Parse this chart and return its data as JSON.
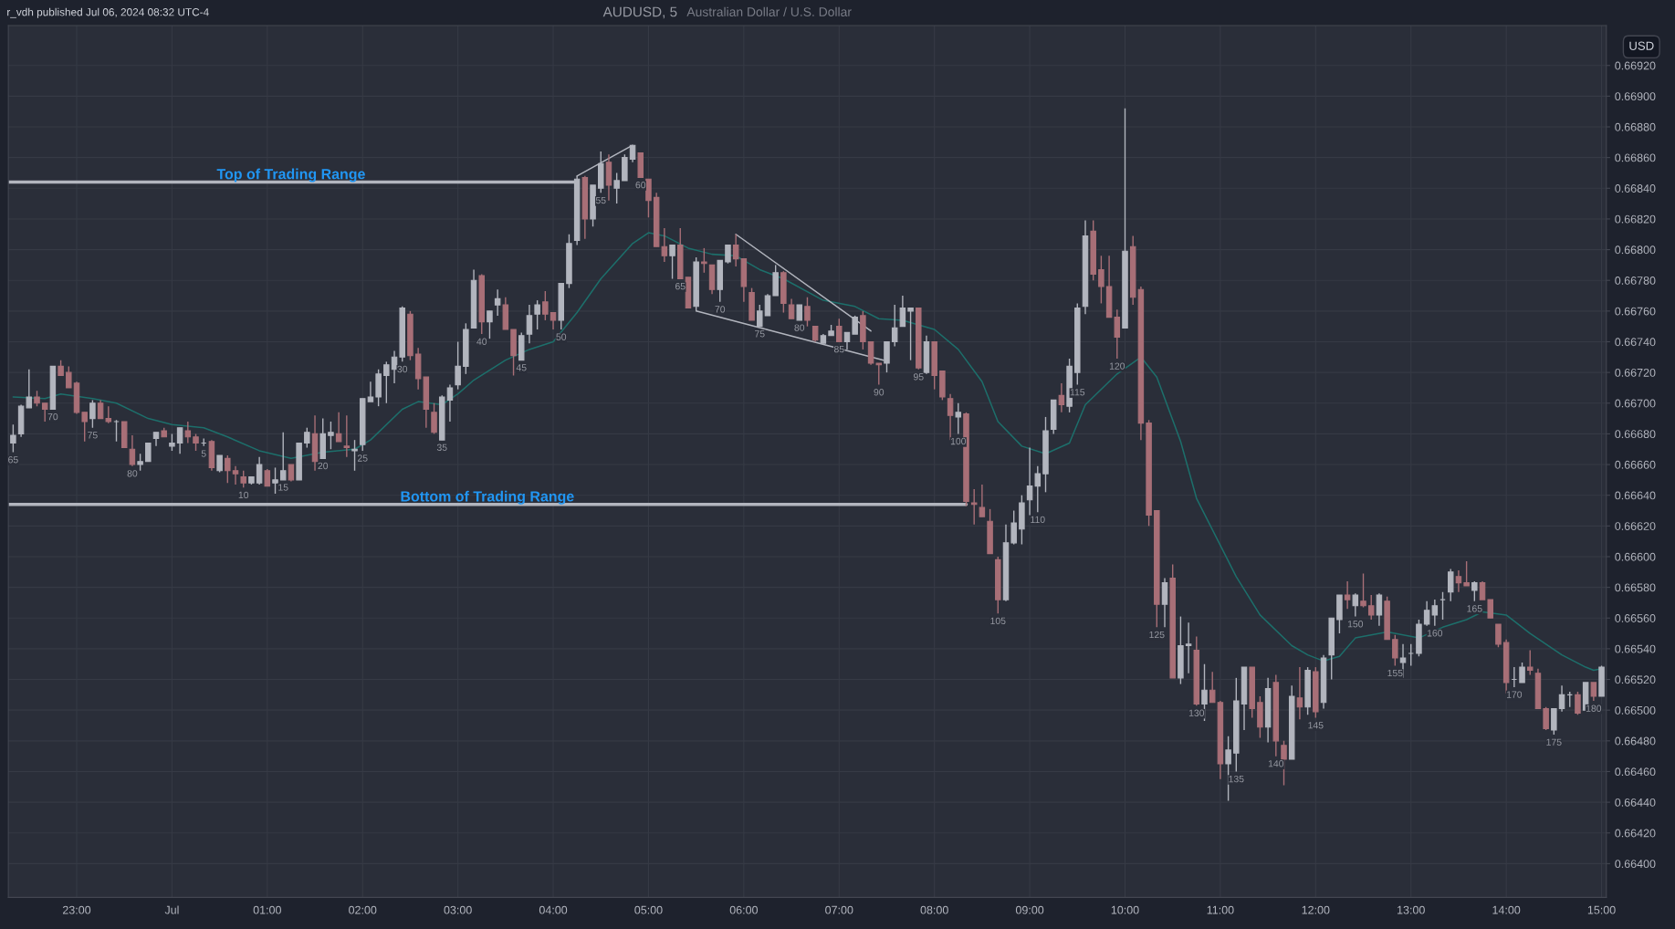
{
  "chart_data": {
    "type": "candlestick",
    "title": "AUDUSD, 5",
    "subtitle": "Australian Dollar / U.S. Dollar",
    "ylabel": "USD",
    "grid": true,
    "xlim": [
      "2024-06-30T22:17",
      "2024-07-01T15:03"
    ],
    "ylim": [
      0.66378,
      0.66946
    ],
    "xticks": [
      {
        "value": "2024-06-30T23:00",
        "label": "23:00"
      },
      {
        "value": "2024-07-01T00:00",
        "label": "Jul"
      },
      {
        "value": "2024-07-01T01:00",
        "label": "01:00"
      },
      {
        "value": "2024-07-01T02:00",
        "label": "02:00"
      },
      {
        "value": "2024-07-01T03:00",
        "label": "03:00"
      },
      {
        "value": "2024-07-01T04:00",
        "label": "04:00"
      },
      {
        "value": "2024-07-01T05:00",
        "label": "05:00"
      },
      {
        "value": "2024-07-01T06:00",
        "label": "06:00"
      },
      {
        "value": "2024-07-01T07:00",
        "label": "07:00"
      },
      {
        "value": "2024-07-01T08:00",
        "label": "08:00"
      },
      {
        "value": "2024-07-01T09:00",
        "label": "09:00"
      },
      {
        "value": "2024-07-01T10:00",
        "label": "10:00"
      },
      {
        "value": "2024-07-01T11:00",
        "label": "11:00"
      },
      {
        "value": "2024-07-01T12:00",
        "label": "12:00"
      },
      {
        "value": "2024-07-01T13:00",
        "label": "13:00"
      },
      {
        "value": "2024-07-01T14:00",
        "label": "14:00"
      },
      {
        "value": "2024-07-01T15:00",
        "label": "15:00"
      }
    ],
    "yticks": [
      {
        "value": 0.664,
        "label": "0.66400"
      },
      {
        "value": 0.6642,
        "label": "0.66420"
      },
      {
        "value": 0.6644,
        "label": "0.66440"
      },
      {
        "value": 0.6646,
        "label": "0.66460"
      },
      {
        "value": 0.6648,
        "label": "0.66480"
      },
      {
        "value": 0.665,
        "label": "0.66500"
      },
      {
        "value": 0.6652,
        "label": "0.66520"
      },
      {
        "value": 0.6654,
        "label": "0.66540"
      },
      {
        "value": 0.6656,
        "label": "0.66560"
      },
      {
        "value": 0.6658,
        "label": "0.66580"
      },
      {
        "value": 0.666,
        "label": "0.66600"
      },
      {
        "value": 0.6662,
        "label": "0.66620"
      },
      {
        "value": 0.6664,
        "label": "0.66640"
      },
      {
        "value": 0.6666,
        "label": "0.66660"
      },
      {
        "value": 0.6668,
        "label": "0.66680"
      },
      {
        "value": 0.667,
        "label": "0.66700"
      },
      {
        "value": 0.6672,
        "label": "0.66720"
      },
      {
        "value": 0.6674,
        "label": "0.66740"
      },
      {
        "value": 0.6676,
        "label": "0.66760"
      },
      {
        "value": 0.6678,
        "label": "0.66780"
      },
      {
        "value": 0.668,
        "label": "0.66800"
      },
      {
        "value": 0.6682,
        "label": "0.66820"
      },
      {
        "value": 0.6684,
        "label": "0.66840"
      },
      {
        "value": 0.6686,
        "label": "0.66860"
      },
      {
        "value": 0.6688,
        "label": "0.66880"
      },
      {
        "value": 0.669,
        "label": "0.66900"
      },
      {
        "value": 0.6692,
        "label": "0.66920"
      }
    ],
    "x": [
      "2024-06-30T22:20",
      "2024-06-30T22:25",
      "2024-06-30T22:30",
      "2024-06-30T22:35",
      "2024-06-30T22:40",
      "2024-06-30T22:45",
      "2024-06-30T22:50",
      "2024-06-30T22:55",
      "2024-06-30T23:00",
      "2024-06-30T23:05",
      "2024-06-30T23:10",
      "2024-06-30T23:15",
      "2024-06-30T23:20",
      "2024-06-30T23:25",
      "2024-06-30T23:30",
      "2024-06-30T23:35",
      "2024-06-30T23:40",
      "2024-06-30T23:45",
      "2024-06-30T23:50",
      "2024-06-30T23:55",
      "2024-07-01T00:00",
      "2024-07-01T00:05",
      "2024-07-01T00:10",
      "2024-07-01T00:15",
      "2024-07-01T00:20",
      "2024-07-01T00:25",
      "2024-07-01T00:30",
      "2024-07-01T00:35",
      "2024-07-01T00:40",
      "2024-07-01T00:45",
      "2024-07-01T00:50",
      "2024-07-01T00:55",
      "2024-07-01T01:00",
      "2024-07-01T01:05",
      "2024-07-01T01:10",
      "2024-07-01T01:15",
      "2024-07-01T01:20",
      "2024-07-01T01:25",
      "2024-07-01T01:30",
      "2024-07-01T01:35",
      "2024-07-01T01:40",
      "2024-07-01T01:45",
      "2024-07-01T01:50",
      "2024-07-01T01:55",
      "2024-07-01T02:00",
      "2024-07-01T02:05",
      "2024-07-01T02:10",
      "2024-07-01T02:15",
      "2024-07-01T02:20",
      "2024-07-01T02:25",
      "2024-07-01T02:30",
      "2024-07-01T02:35",
      "2024-07-01T02:40",
      "2024-07-01T02:45",
      "2024-07-01T02:50",
      "2024-07-01T02:55",
      "2024-07-01T03:00",
      "2024-07-01T03:05",
      "2024-07-01T03:10",
      "2024-07-01T03:15",
      "2024-07-01T03:20",
      "2024-07-01T03:25",
      "2024-07-01T03:30",
      "2024-07-01T03:35",
      "2024-07-01T03:40",
      "2024-07-01T03:45",
      "2024-07-01T03:50",
      "2024-07-01T03:55",
      "2024-07-01T04:00",
      "2024-07-01T04:05",
      "2024-07-01T04:10",
      "2024-07-01T04:15",
      "2024-07-01T04:20",
      "2024-07-01T04:25",
      "2024-07-01T04:30",
      "2024-07-01T04:35",
      "2024-07-01T04:40",
      "2024-07-01T04:45",
      "2024-07-01T04:50",
      "2024-07-01T04:55",
      "2024-07-01T05:00",
      "2024-07-01T05:05",
      "2024-07-01T05:10",
      "2024-07-01T05:15",
      "2024-07-01T05:20",
      "2024-07-01T05:25",
      "2024-07-01T05:30",
      "2024-07-01T05:35",
      "2024-07-01T05:40",
      "2024-07-01T05:45",
      "2024-07-01T05:50",
      "2024-07-01T05:55",
      "2024-07-01T06:00",
      "2024-07-01T06:05",
      "2024-07-01T06:10",
      "2024-07-01T06:15",
      "2024-07-01T06:20",
      "2024-07-01T06:25",
      "2024-07-01T06:30",
      "2024-07-01T06:35",
      "2024-07-01T06:40",
      "2024-07-01T06:45",
      "2024-07-01T06:50",
      "2024-07-01T06:55",
      "2024-07-01T07:00",
      "2024-07-01T07:05",
      "2024-07-01T07:10",
      "2024-07-01T07:15",
      "2024-07-01T07:20",
      "2024-07-01T07:25",
      "2024-07-01T07:30",
      "2024-07-01T07:35",
      "2024-07-01T07:40",
      "2024-07-01T07:45",
      "2024-07-01T07:50",
      "2024-07-01T07:55",
      "2024-07-01T08:00",
      "2024-07-01T08:05",
      "2024-07-01T08:10",
      "2024-07-01T08:15",
      "2024-07-01T08:20",
      "2024-07-01T08:25",
      "2024-07-01T08:30",
      "2024-07-01T08:35",
      "2024-07-01T08:40",
      "2024-07-01T08:45",
      "2024-07-01T08:50",
      "2024-07-01T08:55",
      "2024-07-01T09:00",
      "2024-07-01T09:05",
      "2024-07-01T09:10",
      "2024-07-01T09:15",
      "2024-07-01T09:20",
      "2024-07-01T09:25",
      "2024-07-01T09:30",
      "2024-07-01T09:35",
      "2024-07-01T09:40",
      "2024-07-01T09:45",
      "2024-07-01T09:50",
      "2024-07-01T09:55",
      "2024-07-01T10:00",
      "2024-07-01T10:05",
      "2024-07-01T10:10",
      "2024-07-01T10:15",
      "2024-07-01T10:20",
      "2024-07-01T10:25",
      "2024-07-01T10:30",
      "2024-07-01T10:35",
      "2024-07-01T10:40",
      "2024-07-01T10:45",
      "2024-07-01T10:50",
      "2024-07-01T10:55",
      "2024-07-01T11:00",
      "2024-07-01T11:05",
      "2024-07-01T11:10",
      "2024-07-01T11:15",
      "2024-07-01T11:20",
      "2024-07-01T11:25",
      "2024-07-01T11:30",
      "2024-07-01T11:35",
      "2024-07-01T11:40",
      "2024-07-01T11:45",
      "2024-07-01T11:50",
      "2024-07-01T11:55",
      "2024-07-01T12:00",
      "2024-07-01T12:05",
      "2024-07-01T12:10",
      "2024-07-01T12:15",
      "2024-07-01T12:20",
      "2024-07-01T12:25",
      "2024-07-01T12:30",
      "2024-07-01T12:35",
      "2024-07-01T12:40",
      "2024-07-01T12:45",
      "2024-07-01T12:50",
      "2024-07-01T12:55",
      "2024-07-01T13:00",
      "2024-07-01T13:05",
      "2024-07-01T13:10",
      "2024-07-01T13:15",
      "2024-07-01T13:20",
      "2024-07-01T13:25",
      "2024-07-01T13:30",
      "2024-07-01T13:35",
      "2024-07-01T13:40",
      "2024-07-01T13:45",
      "2024-07-01T13:50",
      "2024-07-01T13:55",
      "2024-07-01T14:00",
      "2024-07-01T14:05",
      "2024-07-01T14:10",
      "2024-07-01T14:15",
      "2024-07-01T14:20",
      "2024-07-01T14:25",
      "2024-07-01T14:30",
      "2024-07-01T14:35",
      "2024-07-01T14:40",
      "2024-07-01T14:45",
      "2024-07-01T14:50",
      "2024-07-01T14:55",
      "2024-07-01T15:00"
    ],
    "ohlc": [
      [
        0.66674,
        0.66686,
        0.66668,
        0.66679
      ],
      [
        0.6668,
        0.66699,
        0.66678,
        0.66698
      ],
      [
        0.66697,
        0.66722,
        0.66697,
        0.66704
      ],
      [
        0.66704,
        0.66708,
        0.66698,
        0.667
      ],
      [
        0.667,
        0.667,
        0.66688,
        0.66696
      ],
      [
        0.66696,
        0.66724,
        0.66696,
        0.66724
      ],
      [
        0.66724,
        0.66728,
        0.66718,
        0.66718
      ],
      [
        0.6672,
        0.66724,
        0.6671,
        0.6671
      ],
      [
        0.66713,
        0.66714,
        0.66693,
        0.66694
      ],
      [
        0.66694,
        0.66694,
        0.66675,
        0.66688
      ],
      [
        0.6669,
        0.66702,
        0.66684,
        0.667
      ],
      [
        0.667,
        0.66702,
        0.6669,
        0.6669
      ],
      [
        0.6669,
        0.66698,
        0.66687,
        0.66688
      ],
      [
        0.66688,
        0.66689,
        0.66675,
        0.66688
      ],
      [
        0.66688,
        0.66688,
        0.66671,
        0.66671
      ],
      [
        0.6667,
        0.66679,
        0.66659,
        0.6666
      ],
      [
        0.6666,
        0.66667,
        0.66656,
        0.66662
      ],
      [
        0.66662,
        0.66674,
        0.66662,
        0.66674
      ],
      [
        0.66677,
        0.66681,
        0.66672,
        0.66681
      ],
      [
        0.66682,
        0.66684,
        0.66678,
        0.66678
      ],
      [
        0.66672,
        0.6668,
        0.66669,
        0.66674
      ],
      [
        0.66674,
        0.66684,
        0.66667,
        0.66684
      ],
      [
        0.66682,
        0.66688,
        0.66674,
        0.66678
      ],
      [
        0.66678,
        0.6668,
        0.66669,
        0.66674
      ],
      [
        0.66674,
        0.66677,
        0.66672,
        0.66674
      ],
      [
        0.66675,
        0.66676,
        0.66656,
        0.66658
      ],
      [
        0.66656,
        0.66666,
        0.66655,
        0.66666
      ],
      [
        0.66664,
        0.66666,
        0.66648,
        0.66656
      ],
      [
        0.66656,
        0.66659,
        0.66647,
        0.66654
      ],
      [
        0.66652,
        0.66656,
        0.66645,
        0.66648
      ],
      [
        0.66648,
        0.66652,
        0.66647,
        0.66652
      ],
      [
        0.66648,
        0.66665,
        0.66647,
        0.6666
      ],
      [
        0.66656,
        0.66657,
        0.66646,
        0.66646
      ],
      [
        0.66648,
        0.66658,
        0.66641,
        0.6665
      ],
      [
        0.6665,
        0.66681,
        0.6665,
        0.66656
      ],
      [
        0.6666,
        0.6666,
        0.66649,
        0.6665
      ],
      [
        0.6665,
        0.66674,
        0.6665,
        0.66674
      ],
      [
        0.66674,
        0.66684,
        0.66671,
        0.66681
      ],
      [
        0.6668,
        0.66692,
        0.66656,
        0.66662
      ],
      [
        0.66664,
        0.6669,
        0.66664,
        0.6668
      ],
      [
        0.66679,
        0.66688,
        0.6667,
        0.66681
      ],
      [
        0.6668,
        0.66694,
        0.66675,
        0.66675
      ],
      [
        0.66672,
        0.66692,
        0.66665,
        0.66671
      ],
      [
        0.66669,
        0.66676,
        0.66656,
        0.6667
      ],
      [
        0.66673,
        0.66703,
        0.66669,
        0.66703
      ],
      [
        0.66701,
        0.66714,
        0.66701,
        0.66704
      ],
      [
        0.66704,
        0.66722,
        0.66698,
        0.66719
      ],
      [
        0.66718,
        0.66727,
        0.667,
        0.66725
      ],
      [
        0.66722,
        0.66734,
        0.66713,
        0.6673
      ],
      [
        0.6673,
        0.66763,
        0.66727,
        0.66762
      ],
      [
        0.66758,
        0.6676,
        0.66728,
        0.66731
      ],
      [
        0.66732,
        0.66736,
        0.66709,
        0.66716
      ],
      [
        0.66717,
        0.66717,
        0.66684,
        0.66696
      ],
      [
        0.66694,
        0.667,
        0.6668,
        0.66681
      ],
      [
        0.66676,
        0.66705,
        0.66676,
        0.66704
      ],
      [
        0.66702,
        0.66712,
        0.66688,
        0.6671
      ],
      [
        0.66712,
        0.6674,
        0.66709,
        0.66724
      ],
      [
        0.66724,
        0.66752,
        0.66719,
        0.66748
      ],
      [
        0.66749,
        0.66787,
        0.66749,
        0.6678
      ],
      [
        0.66783,
        0.66784,
        0.66745,
        0.66753
      ],
      [
        0.66753,
        0.6676,
        0.66742,
        0.6676
      ],
      [
        0.66764,
        0.66774,
        0.66757,
        0.66768
      ],
      [
        0.66764,
        0.66769,
        0.66748,
        0.66748
      ],
      [
        0.66748,
        0.66748,
        0.66718,
        0.66731
      ],
      [
        0.66728,
        0.66746,
        0.66728,
        0.66744
      ],
      [
        0.66745,
        0.66764,
        0.66739,
        0.66757
      ],
      [
        0.66758,
        0.66767,
        0.66748,
        0.66764
      ],
      [
        0.66766,
        0.66773,
        0.66754,
        0.66758
      ],
      [
        0.66759,
        0.66759,
        0.66748,
        0.66754
      ],
      [
        0.66754,
        0.66778,
        0.66748,
        0.66778
      ],
      [
        0.66778,
        0.6681,
        0.66775,
        0.66804
      ],
      [
        0.66806,
        0.66848,
        0.66803,
        0.66846
      ],
      [
        0.66847,
        0.66848,
        0.66807,
        0.6682
      ],
      [
        0.6682,
        0.66842,
        0.66815,
        0.66842
      ],
      [
        0.6684,
        0.66864,
        0.66837,
        0.66856
      ],
      [
        0.66857,
        0.66862,
        0.66832,
        0.66842
      ],
      [
        0.6684,
        0.6685,
        0.6683,
        0.66845
      ],
      [
        0.66845,
        0.66862,
        0.66845,
        0.6686
      ],
      [
        0.66859,
        0.66868,
        0.66857,
        0.66868
      ],
      [
        0.66863,
        0.66863,
        0.66847,
        0.66847
      ],
      [
        0.66846,
        0.66846,
        0.66821,
        0.66832
      ],
      [
        0.66834,
        0.66837,
        0.66802,
        0.66802
      ],
      [
        0.66802,
        0.66814,
        0.66792,
        0.66796
      ],
      [
        0.66796,
        0.66803,
        0.66781,
        0.66803
      ],
      [
        0.66803,
        0.66814,
        0.66781,
        0.66781
      ],
      [
        0.66782,
        0.66782,
        0.66762,
        0.66762
      ],
      [
        0.66763,
        0.66795,
        0.6676,
        0.66792
      ],
      [
        0.66792,
        0.66801,
        0.66785,
        0.66791
      ],
      [
        0.6679,
        0.6679,
        0.66771,
        0.66774
      ],
      [
        0.66774,
        0.66793,
        0.66766,
        0.66793
      ],
      [
        0.66792,
        0.66803,
        0.66791,
        0.66803
      ],
      [
        0.66803,
        0.6681,
        0.66789,
        0.66794
      ],
      [
        0.66794,
        0.66794,
        0.66766,
        0.66776
      ],
      [
        0.66772,
        0.66775,
        0.66754,
        0.66754
      ],
      [
        0.6675,
        0.66764,
        0.6675,
        0.6676
      ],
      [
        0.66757,
        0.66771,
        0.66757,
        0.6677
      ],
      [
        0.6677,
        0.6679,
        0.6677,
        0.66785
      ],
      [
        0.66785,
        0.66786,
        0.66759,
        0.66765
      ],
      [
        0.66764,
        0.66768,
        0.66755,
        0.66755
      ],
      [
        0.66754,
        0.66764,
        0.66754,
        0.66764
      ],
      [
        0.66763,
        0.66769,
        0.6675,
        0.66754
      ],
      [
        0.6675,
        0.6675,
        0.6674,
        0.66741
      ],
      [
        0.66739,
        0.66745,
        0.66739,
        0.66744
      ],
      [
        0.66744,
        0.66751,
        0.66744,
        0.66747
      ],
      [
        0.6675,
        0.66755,
        0.6674,
        0.6674
      ],
      [
        0.6674,
        0.66746,
        0.66735,
        0.66746
      ],
      [
        0.66745,
        0.66757,
        0.66745,
        0.66756
      ],
      [
        0.66757,
        0.6676,
        0.66735,
        0.6674
      ],
      [
        0.6674,
        0.6674,
        0.66725,
        0.66726
      ],
      [
        0.66726,
        0.66726,
        0.66712,
        0.66725
      ],
      [
        0.66726,
        0.6674,
        0.6672,
        0.6674
      ],
      [
        0.6674,
        0.66764,
        0.66737,
        0.66749
      ],
      [
        0.6675,
        0.6677,
        0.6675,
        0.66762
      ],
      [
        0.6676,
        0.66762,
        0.66728,
        0.66762
      ],
      [
        0.66762,
        0.66762,
        0.66722,
        0.66723
      ],
      [
        0.6672,
        0.66744,
        0.66719,
        0.6674
      ],
      [
        0.6674,
        0.6674,
        0.66709,
        0.66718
      ],
      [
        0.66721,
        0.66721,
        0.66702,
        0.66704
      ],
      [
        0.66703,
        0.66706,
        0.66676,
        0.66692
      ],
      [
        0.66691,
        0.667,
        0.6668,
        0.66694
      ],
      [
        0.66693,
        0.66694,
        0.66633,
        0.66636
      ],
      [
        0.66635,
        0.66644,
        0.66621,
        0.66634
      ],
      [
        0.66632,
        0.66647,
        0.66626,
        0.66626
      ],
      [
        0.66623,
        0.66631,
        0.66602,
        0.66602
      ],
      [
        0.66598,
        0.666,
        0.66563,
        0.66572
      ],
      [
        0.66572,
        0.66621,
        0.66571,
        0.66609
      ],
      [
        0.66609,
        0.6663,
        0.66608,
        0.66622
      ],
      [
        0.66618,
        0.6664,
        0.66608,
        0.66635
      ],
      [
        0.66637,
        0.66671,
        0.66627,
        0.66646
      ],
      [
        0.66646,
        0.66659,
        0.66629,
        0.66654
      ],
      [
        0.66654,
        0.66691,
        0.66642,
        0.66682
      ],
      [
        0.66683,
        0.66702,
        0.6668,
        0.66702
      ],
      [
        0.66705,
        0.66713,
        0.66694,
        0.66699
      ],
      [
        0.66698,
        0.66729,
        0.66694,
        0.66724
      ],
      [
        0.6672,
        0.66765,
        0.66712,
        0.66762
      ],
      [
        0.66763,
        0.66819,
        0.66758,
        0.66809
      ],
      [
        0.66812,
        0.66819,
        0.6678,
        0.66784
      ],
      [
        0.66787,
        0.66796,
        0.66765,
        0.66776
      ],
      [
        0.66776,
        0.66796,
        0.66756,
        0.66756
      ],
      [
        0.66756,
        0.66761,
        0.66729,
        0.66743
      ],
      [
        0.66749,
        0.66892,
        0.66749,
        0.66799
      ],
      [
        0.66802,
        0.66809,
        0.66764,
        0.66769
      ],
      [
        0.66774,
        0.66776,
        0.66676,
        0.66687
      ],
      [
        0.66687,
        0.66689,
        0.6662,
        0.66627
      ],
      [
        0.6663,
        0.6663,
        0.66554,
        0.66569
      ],
      [
        0.66569,
        0.66586,
        0.66554,
        0.66583
      ],
      [
        0.66586,
        0.66595,
        0.66521,
        0.66521
      ],
      [
        0.66521,
        0.66561,
        0.66517,
        0.66542
      ],
      [
        0.66542,
        0.66557,
        0.66524,
        0.66543
      ],
      [
        0.66539,
        0.66548,
        0.66503,
        0.66504
      ],
      [
        0.66504,
        0.6653,
        0.66493,
        0.66513
      ],
      [
        0.66513,
        0.66525,
        0.66505,
        0.66505
      ],
      [
        0.66505,
        0.66506,
        0.66455,
        0.66465
      ],
      [
        0.66465,
        0.66483,
        0.66441,
        0.66474
      ],
      [
        0.66472,
        0.66521,
        0.6646,
        0.66506
      ],
      [
        0.66504,
        0.66528,
        0.66487,
        0.66528
      ],
      [
        0.66528,
        0.66528,
        0.66495,
        0.66501
      ],
      [
        0.66505,
        0.66509,
        0.66482,
        0.66489
      ],
      [
        0.66489,
        0.66521,
        0.66479,
        0.66514
      ],
      [
        0.66518,
        0.66523,
        0.6647,
        0.6648
      ],
      [
        0.66477,
        0.6648,
        0.66451,
        0.66468
      ],
      [
        0.66468,
        0.66516,
        0.66468,
        0.66509
      ],
      [
        0.66508,
        0.66528,
        0.66494,
        0.66502
      ],
      [
        0.66502,
        0.66528,
        0.66497,
        0.66526
      ],
      [
        0.66525,
        0.66528,
        0.66495,
        0.66499
      ],
      [
        0.66505,
        0.66536,
        0.66501,
        0.66534
      ],
      [
        0.66536,
        0.6656,
        0.6652,
        0.6656
      ],
      [
        0.66559,
        0.66575,
        0.6655,
        0.66575
      ],
      [
        0.66575,
        0.66584,
        0.66566,
        0.66572
      ],
      [
        0.66568,
        0.66576,
        0.66561,
        0.66575
      ],
      [
        0.66571,
        0.66589,
        0.66567,
        0.66568
      ],
      [
        0.66568,
        0.66575,
        0.66559,
        0.66562
      ],
      [
        0.66562,
        0.66576,
        0.66555,
        0.66575
      ],
      [
        0.66571,
        0.66574,
        0.66546,
        0.66546
      ],
      [
        0.66546,
        0.66549,
        0.66529,
        0.66534
      ],
      [
        0.66531,
        0.66543,
        0.66521,
        0.66534
      ],
      [
        0.66537,
        0.66543,
        0.66529,
        0.66537
      ],
      [
        0.66537,
        0.66559,
        0.66535,
        0.66556
      ],
      [
        0.66556,
        0.66571,
        0.66555,
        0.66565
      ],
      [
        0.66562,
        0.66572,
        0.66555,
        0.66568
      ],
      [
        0.66572,
        0.66577,
        0.66559,
        0.66572
      ],
      [
        0.66577,
        0.66592,
        0.66571,
        0.6659
      ],
      [
        0.66587,
        0.66591,
        0.66577,
        0.66583
      ],
      [
        0.66583,
        0.66597,
        0.66581,
        0.66581
      ],
      [
        0.66578,
        0.66584,
        0.66571,
        0.66583
      ],
      [
        0.66583,
        0.66584,
        0.66572,
        0.66572
      ],
      [
        0.66572,
        0.66572,
        0.6656,
        0.6656
      ],
      [
        0.66556,
        0.66556,
        0.66541,
        0.66543
      ],
      [
        0.66544,
        0.66546,
        0.66511,
        0.66518
      ],
      [
        0.6652,
        0.66528,
        0.66515,
        0.6652
      ],
      [
        0.66518,
        0.66531,
        0.66518,
        0.66528
      ],
      [
        0.66528,
        0.66539,
        0.66523,
        0.66526
      ],
      [
        0.66524,
        0.66527,
        0.66501,
        0.66501
      ],
      [
        0.66501,
        0.66502,
        0.66487,
        0.66488
      ],
      [
        0.66487,
        0.66501,
        0.66484,
        0.66501
      ],
      [
        0.66501,
        0.66516,
        0.66499,
        0.6651
      ],
      [
        0.6651,
        0.66512,
        0.66502,
        0.6651
      ],
      [
        0.6651,
        0.66512,
        0.66497,
        0.66498
      ],
      [
        0.665,
        0.66518,
        0.665,
        0.66518
      ],
      [
        0.66518,
        0.66518,
        0.66506,
        0.66509
      ],
      [
        0.66509,
        0.66529,
        0.66509,
        0.66528
      ]
    ],
    "series": [
      {
        "type": "line",
        "color": "#1d6f6b",
        "x": [
          "2024-06-30T22:20",
          "2024-06-30T22:40",
          "2024-06-30T22:50",
          "2024-06-30T23:10",
          "2024-06-30T23:25",
          "2024-06-30T23:45",
          "2024-07-01T00:00",
          "2024-07-01T00:20",
          "2024-07-01T00:35",
          "2024-07-01T00:55",
          "2024-07-01T01:15",
          "2024-07-01T01:35",
          "2024-07-01T01:55",
          "2024-07-01T02:05",
          "2024-07-01T02:25",
          "2024-07-01T02:35",
          "2024-07-01T02:50",
          "2024-07-01T03:00",
          "2024-07-01T03:10",
          "2024-07-01T03:30",
          "2024-07-01T03:45",
          "2024-07-01T04:00",
          "2024-07-01T04:15",
          "2024-07-01T04:30",
          "2024-07-01T04:50",
          "2024-07-01T05:00",
          "2024-07-01T05:10",
          "2024-07-01T05:25",
          "2024-07-01T05:40",
          "2024-07-01T05:55",
          "2024-07-01T06:10",
          "2024-07-01T06:25",
          "2024-07-01T06:50",
          "2024-07-01T07:10",
          "2024-07-01T07:25",
          "2024-07-01T07:40",
          "2024-07-01T07:50",
          "2024-07-01T08:00",
          "2024-07-01T08:15",
          "2024-07-01T08:30",
          "2024-07-01T08:40",
          "2024-07-01T08:55",
          "2024-07-01T09:10",
          "2024-07-01T09:25",
          "2024-07-01T09:35",
          "2024-07-01T09:55",
          "2024-07-01T10:10",
          "2024-07-01T10:20",
          "2024-07-01T10:35",
          "2024-07-01T10:45",
          "2024-07-01T11:10",
          "2024-07-01T11:25",
          "2024-07-01T11:45",
          "2024-07-01T11:55",
          "2024-07-01T12:05",
          "2024-07-01T12:15",
          "2024-07-01T12:25",
          "2024-07-01T12:45",
          "2024-07-01T13:05",
          "2024-07-01T13:20",
          "2024-07-01T13:35",
          "2024-07-01T13:45",
          "2024-07-01T14:00",
          "2024-07-01T14:15",
          "2024-07-01T14:35",
          "2024-07-01T14:50",
          "2024-07-01T14:55",
          "2024-07-01T15:00"
        ],
        "values": [
          0.66704,
          0.66703,
          0.66706,
          0.66703,
          0.667,
          0.6669,
          0.66686,
          0.66684,
          0.66678,
          0.66669,
          0.66664,
          0.66668,
          0.6667,
          0.66676,
          0.66696,
          0.66701,
          0.66699,
          0.66706,
          0.66715,
          0.66728,
          0.66735,
          0.6674,
          0.66759,
          0.66781,
          0.66804,
          0.66811,
          0.66809,
          0.66801,
          0.66797,
          0.66796,
          0.66787,
          0.66781,
          0.66767,
          0.66763,
          0.66755,
          0.66754,
          0.66751,
          0.66748,
          0.66735,
          0.66714,
          0.66688,
          0.66672,
          0.66667,
          0.66674,
          0.66699,
          0.66719,
          0.6673,
          0.66717,
          0.66675,
          0.66638,
          0.66587,
          0.66562,
          0.66542,
          0.66536,
          0.66532,
          0.66535,
          0.66547,
          0.66551,
          0.66547,
          0.66554,
          0.66559,
          0.66564,
          0.66562,
          0.6655,
          0.66536,
          0.66528,
          0.66526,
          0.66527
        ]
      },
      {
        "type": "line",
        "color": "#b2b5be",
        "x": [
          "2024-07-01T04:15",
          "2024-07-01T04:50"
        ],
        "values": [
          0.66848,
          0.66868
        ]
      },
      {
        "type": "line",
        "color": "#b2b5be",
        "x": [
          "2024-07-01T05:55",
          "2024-07-01T07:20"
        ],
        "values": [
          0.6681,
          0.66747
        ]
      },
      {
        "type": "line",
        "color": "#b2b5be",
        "x": [
          "2024-07-01T05:30",
          "2024-07-01T07:28"
        ],
        "values": [
          0.6676,
          0.66728
        ]
      },
      {
        "type": "line",
        "name": "Top of Trading Range",
        "color": "#b2b5be",
        "x": [
          "2024-06-30T22:17",
          "2024-07-01T04:13"
        ],
        "values": [
          0.66844,
          0.66844
        ]
      },
      {
        "type": "line",
        "name": "Bottom of Trading Range",
        "color": "#b2b5be",
        "x": [
          "2024-06-30T22:17",
          "2024-07-01T08:20"
        ],
        "values": [
          0.66634,
          0.66634
        ]
      }
    ],
    "annotations": [
      "r_vdh published Jul 06, 2024 08:32 UTC-4",
      {
        "text": "65",
        "x": "2024-06-30T22:20",
        "y": 0.66668
      },
      {
        "text": "70",
        "x": "2024-06-30T22:45",
        "y": 0.66696
      },
      {
        "text": "75",
        "x": "2024-06-30T23:10",
        "y": 0.66684
      },
      {
        "text": "80",
        "x": "2024-06-30T23:35",
        "y": 0.66659
      },
      {
        "text": "5",
        "x": "2024-07-01T00:20",
        "y": 0.66672
      },
      {
        "text": "10",
        "x": "2024-07-01T00:45",
        "y": 0.66645
      },
      {
        "text": "15",
        "x": "2024-07-01T01:10",
        "y": 0.6665
      },
      {
        "text": "20",
        "x": "2024-07-01T01:35",
        "y": 0.66664
      },
      {
        "text": "25",
        "x": "2024-07-01T02:00",
        "y": 0.66669
      },
      {
        "text": "30",
        "x": "2024-07-01T02:25",
        "y": 0.66727
      },
      {
        "text": "35",
        "x": "2024-07-01T02:50",
        "y": 0.66676
      },
      {
        "text": "40",
        "x": "2024-07-01T03:15",
        "y": 0.66745
      },
      {
        "text": "45",
        "x": "2024-07-01T03:40",
        "y": 0.66728
      },
      {
        "text": "50",
        "x": "2024-07-01T04:05",
        "y": 0.66748
      },
      {
        "text": "55",
        "x": "2024-07-01T04:30",
        "y": 0.66837
      },
      {
        "text": "60",
        "x": "2024-07-01T04:55",
        "y": 0.66847
      },
      {
        "text": "65",
        "x": "2024-07-01T05:20",
        "y": 0.66781
      },
      {
        "text": "70",
        "x": "2024-07-01T05:45",
        "y": 0.66766
      },
      {
        "text": "75",
        "x": "2024-07-01T06:10",
        "y": 0.6675
      },
      {
        "text": "80",
        "x": "2024-07-01T06:35",
        "y": 0.66754
      },
      {
        "text": "85",
        "x": "2024-07-01T07:00",
        "y": 0.6674
      },
      {
        "text": "90",
        "x": "2024-07-01T07:25",
        "y": 0.66712
      },
      {
        "text": "95",
        "x": "2024-07-01T07:50",
        "y": 0.66722
      },
      {
        "text": "100",
        "x": "2024-07-01T08:15",
        "y": 0.6668
      },
      {
        "text": "105",
        "x": "2024-07-01T08:40",
        "y": 0.66563
      },
      {
        "text": "110",
        "x": "2024-07-01T09:05",
        "y": 0.66629
      },
      {
        "text": "115",
        "x": "2024-07-01T09:30",
        "y": 0.66712
      },
      {
        "text": "120",
        "x": "2024-07-01T09:55",
        "y": 0.66729
      },
      {
        "text": "125",
        "x": "2024-07-01T10:20",
        "y": 0.66554
      },
      {
        "text": "130",
        "x": "2024-07-01T10:45",
        "y": 0.66503
      },
      {
        "text": "135",
        "x": "2024-07-01T11:10",
        "y": 0.6646
      },
      {
        "text": "140",
        "x": "2024-07-01T11:35",
        "y": 0.6647
      },
      {
        "text": "145",
        "x": "2024-07-01T12:00",
        "y": 0.66495
      },
      {
        "text": "150",
        "x": "2024-07-01T12:25",
        "y": 0.66561
      },
      {
        "text": "155",
        "x": "2024-07-01T12:50",
        "y": 0.66529
      },
      {
        "text": "160",
        "x": "2024-07-01T13:15",
        "y": 0.66555
      },
      {
        "text": "165",
        "x": "2024-07-01T13:40",
        "y": 0.66571
      },
      {
        "text": "170",
        "x": "2024-07-01T14:05",
        "y": 0.66515
      },
      {
        "text": "175",
        "x": "2024-07-01T14:30",
        "y": 0.66484
      },
      {
        "text": "180",
        "x": "2024-07-01T14:55",
        "y": 0.66506
      }
    ]
  }
}
